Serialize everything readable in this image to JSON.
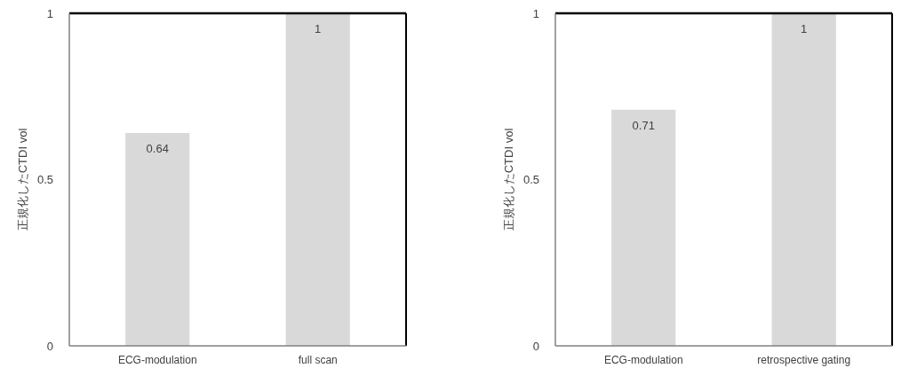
{
  "chart_data": [
    {
      "type": "bar",
      "ylabel": "正規化したCTDI vol",
      "categories": [
        "ECG-modulation",
        "full scan"
      ],
      "values": [
        0.64,
        1
      ],
      "color": "#d9d9d9",
      "ylim": [
        0,
        1
      ],
      "yticks": [
        0,
        0.5,
        1
      ],
      "data_labels": true,
      "grid": false
    },
    {
      "type": "bar",
      "ylabel": "正規化したCTDI vol",
      "categories": [
        "ECG-modulation",
        "retrospective gating"
      ],
      "values": [
        0.71,
        1
      ],
      "color": "#d9d9d9",
      "ylim": [
        0,
        1
      ],
      "yticks": [
        0,
        0.5,
        1
      ],
      "data_labels": true,
      "grid": false
    }
  ]
}
